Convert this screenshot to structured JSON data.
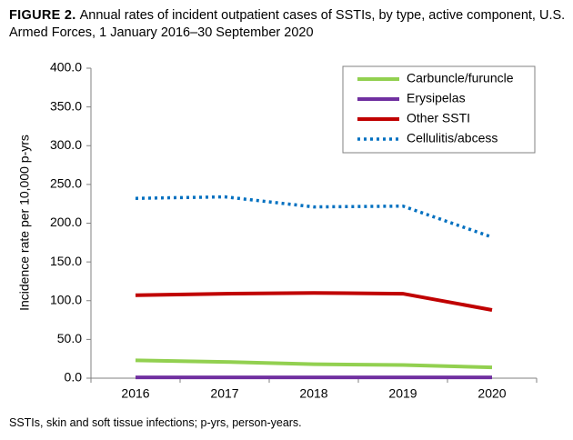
{
  "chart_data": {
    "type": "line",
    "title_label": "FIGURE 2.",
    "title": "Annual rates of incident outpatient cases of SSTIs, by type, active component, U.S. Armed Forces, 1 January 2016–30 September 2020",
    "y_label": "Incidence rate per 10,000 p-yrs",
    "footnote": "SSTIs, skin and soft tissue infections; p-yrs, person-years.",
    "categories": [
      "2016",
      "2017",
      "2018",
      "2019",
      "2020"
    ],
    "series": [
      {
        "name": "Carbuncle/furuncle",
        "color": "#92d050",
        "style": "solid",
        "values": [
          23,
          21,
          18,
          17,
          14
        ]
      },
      {
        "name": "Erysipelas",
        "color": "#7030a0",
        "style": "solid",
        "values": [
          1,
          1,
          1,
          1,
          1
        ]
      },
      {
        "name": "Other SSTI",
        "color": "#c00000",
        "style": "solid",
        "values": [
          107,
          109,
          110,
          109,
          88
        ]
      },
      {
        "name": "Cellulitis/abcess",
        "color": "#0070c0",
        "style": "dotted",
        "values": [
          232,
          234,
          221,
          222,
          182
        ]
      }
    ],
    "ylim": [
      0,
      400
    ],
    "yticks": [
      {
        "value": 0,
        "label": "0.0"
      },
      {
        "value": 50,
        "label": "50.0"
      },
      {
        "value": 100,
        "label": "100.0"
      },
      {
        "value": 150,
        "label": "150.0"
      },
      {
        "value": 200,
        "label": "200.0"
      },
      {
        "value": 250,
        "label": "250.0"
      },
      {
        "value": 300,
        "label": "300.0"
      },
      {
        "value": 350,
        "label": "350.0"
      },
      {
        "value": 400,
        "label": "400.0"
      }
    ],
    "legend": "upper right",
    "grid": false
  }
}
